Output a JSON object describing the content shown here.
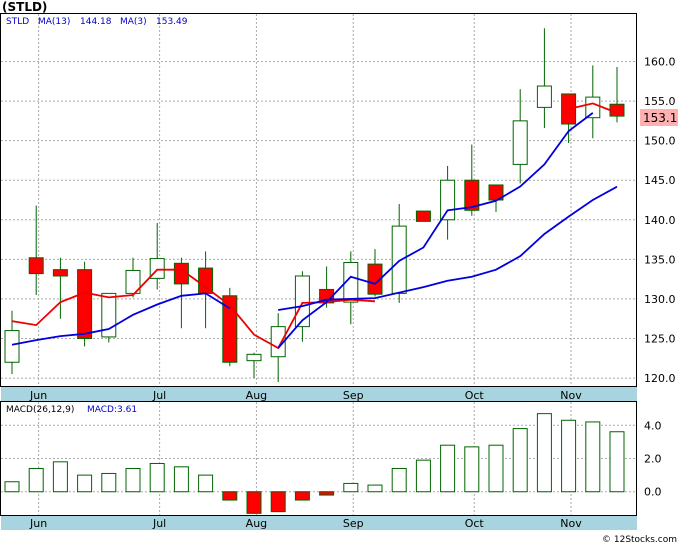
{
  "title": "(STLD)",
  "footer": "© 12Stocks.com",
  "price_legend": {
    "ticker": "STLD",
    "ma13_label": "MA(13)",
    "ma13_value": "144.18",
    "ma3_label": "MA(3)",
    "ma3_value": "153.49"
  },
  "macd_legend": {
    "label": "MACD(26,12,9)",
    "value_label": "MACD:3.61"
  },
  "current_price_tag": "153.1",
  "colors": {
    "up_candle": "#ffffff",
    "down_candle": "#ff0000",
    "candle_outline": "#006400",
    "ma13": "#0000dd",
    "ma3": "#ee0000",
    "axis_band": "#a8d4e0",
    "grid": "#aaaaaa",
    "macd_bar": "#006400",
    "macd_negative": "#ff0000",
    "price_tag_bg": "#ffb0b0"
  },
  "chart_data": [
    {
      "type": "candlestick",
      "title": "(STLD)",
      "x_tick_labels": [
        "Jun",
        "Jul",
        "Aug",
        "Sep",
        "Oct",
        "Nov"
      ],
      "x_tick_positions": [
        1.1,
        6.1,
        10.1,
        14.1,
        19.1,
        23.1
      ],
      "ylim": [
        119,
        166
      ],
      "yticks": [
        120,
        125,
        130,
        135,
        140,
        145,
        150,
        155,
        160
      ],
      "grid": true,
      "candles": [
        {
          "open": 122.0,
          "high": 128.5,
          "low": 120.5,
          "close": 126.0
        },
        {
          "open": 135.2,
          "high": 141.8,
          "low": 130.5,
          "close": 133.2
        },
        {
          "open": 133.7,
          "high": 135.2,
          "low": 127.5,
          "close": 132.9
        },
        {
          "open": 133.7,
          "high": 134.7,
          "low": 124.0,
          "close": 125.0
        },
        {
          "open": 125.2,
          "high": 130.5,
          "low": 124.5,
          "close": 130.7
        },
        {
          "open": 130.7,
          "high": 135.2,
          "low": 130.2,
          "close": 133.6
        },
        {
          "open": 132.6,
          "high": 139.6,
          "low": 131.2,
          "close": 135.1
        },
        {
          "open": 134.5,
          "high": 135.2,
          "low": 126.3,
          "close": 131.9
        },
        {
          "open": 133.9,
          "high": 136.0,
          "low": 126.3,
          "close": 130.7
        },
        {
          "open": 130.4,
          "high": 131.4,
          "low": 121.5,
          "close": 122.0
        },
        {
          "open": 122.2,
          "high": 123.2,
          "low": 120.0,
          "close": 123.0
        },
        {
          "open": 122.7,
          "high": 128.2,
          "low": 119.5,
          "close": 126.5
        },
        {
          "open": 126.5,
          "high": 133.5,
          "low": 124.6,
          "close": 132.9
        },
        {
          "open": 131.2,
          "high": 134.1,
          "low": 128.9,
          "close": 129.5
        },
        {
          "open": 129.6,
          "high": 136.0,
          "low": 126.8,
          "close": 134.6
        },
        {
          "open": 134.4,
          "high": 136.3,
          "low": 130.3,
          "close": 130.6
        },
        {
          "open": 130.7,
          "high": 142.0,
          "low": 129.5,
          "close": 139.2
        },
        {
          "open": 141.1,
          "high": 141.1,
          "low": 139.8,
          "close": 139.8
        },
        {
          "open": 140.0,
          "high": 146.8,
          "low": 137.5,
          "close": 145.0
        },
        {
          "open": 145.0,
          "high": 149.5,
          "low": 140.5,
          "close": 141.2
        },
        {
          "open": 144.4,
          "high": 144.4,
          "low": 141.0,
          "close": 142.5
        },
        {
          "open": 147.0,
          "high": 156.5,
          "low": 144.6,
          "close": 152.5
        },
        {
          "open": 154.2,
          "high": 164.2,
          "low": 151.6,
          "close": 156.9
        },
        {
          "open": 155.9,
          "high": 155.9,
          "low": 149.7,
          "close": 152.1
        },
        {
          "open": 152.9,
          "high": 159.5,
          "low": 150.3,
          "close": 155.5
        },
        {
          "open": 154.6,
          "high": 159.3,
          "low": 152.3,
          "close": 153.1
        }
      ],
      "series": [
        {
          "name": "MA(3)",
          "values": [
            127.2,
            126.7,
            129.6,
            130.8,
            130.2,
            130.5,
            133.7,
            133.7,
            131.5,
            129.2,
            125.5,
            123.8,
            129.5,
            129.6,
            129.9,
            129.7,
            null,
            null,
            null,
            null,
            null,
            null,
            null,
            154.0,
            154.7,
            153.5
          ]
        },
        {
          "name": "MA(13)",
          "values": [
            124.2,
            124.8,
            125.3,
            125.6,
            126.2,
            128.0,
            129.3,
            130.4,
            130.7,
            128.8,
            null,
            128.6,
            129.1,
            129.9,
            130.0,
            130.1,
            130.8,
            131.5,
            132.3,
            132.8,
            133.7,
            135.4,
            138.2,
            140.4,
            142.5,
            144.18
          ]
        },
        {
          "name": "MA(3)",
          "values": [
            null,
            null,
            null,
            null,
            null,
            null,
            null,
            null,
            null,
            null,
            null,
            123.8,
            127.3,
            129.6,
            132.8,
            131.9,
            134.8,
            136.5,
            141.2,
            141.6,
            142.4,
            144.2,
            147.0,
            151.2,
            153.5,
            null
          ]
        }
      ],
      "current_price": 153.1
    },
    {
      "type": "bar",
      "title": "MACD(26,12,9)",
      "x_tick_labels": [
        "Jun",
        "Jul",
        "Aug",
        "Sep",
        "Oct",
        "Nov"
      ],
      "ylim": [
        -1.4,
        5.4
      ],
      "yticks": [
        0.0,
        2.0,
        4.0
      ],
      "values": [
        0.6,
        1.4,
        1.8,
        1.0,
        1.1,
        1.4,
        1.7,
        1.5,
        1.0,
        -0.5,
        -1.3,
        -1.2,
        -0.5,
        -0.2,
        0.5,
        0.4,
        1.4,
        1.9,
        2.8,
        2.7,
        2.8,
        3.8,
        4.7,
        4.3,
        4.2,
        3.61
      ]
    }
  ]
}
